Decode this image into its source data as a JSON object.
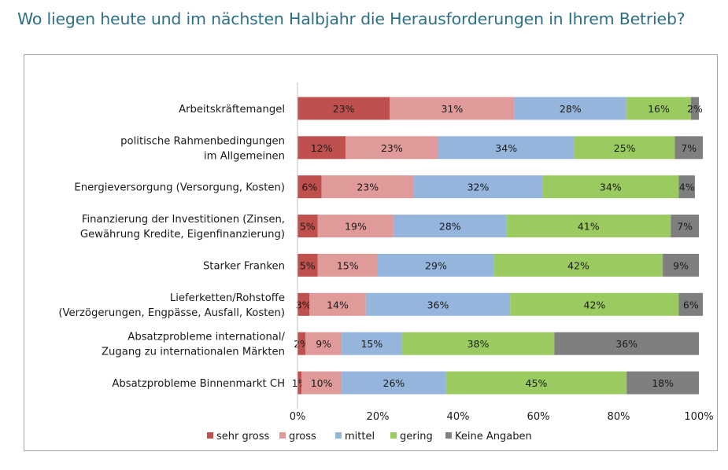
{
  "page": {
    "title": "Wo liegen heute und im nächsten Halbjahr die Herausforderungen in Ihrem Betrieb?"
  },
  "chart_data": {
    "type": "bar",
    "orientation": "horizontal",
    "stacked": true,
    "title": "",
    "xlabel": "",
    "ylabel": "",
    "xlim": [
      0,
      100
    ],
    "x_ticks": [
      "0%",
      "20%",
      "40%",
      "60%",
      "80%",
      "100%"
    ],
    "grid": false,
    "legend_position": "bottom",
    "categories": [
      [
        "Arbeitskräftemangel"
      ],
      [
        "politische Rahmenbedingungen",
        "im Allgemeinen"
      ],
      [
        "Energieversorgung (Versorgung, Kosten)"
      ],
      [
        "Finanzierung der Investitionen (Zinsen,",
        "Gewährung Kredite, Eigenfinanzierung)"
      ],
      [
        "Starker Franken"
      ],
      [
        "Lieferketten/Rohstoffe",
        "(Verzögerungen, Engpässe, Ausfall, Kosten)"
      ],
      [
        "Absatzprobleme international/",
        "Zugang zu internationalen Märkten"
      ],
      [
        "Absatzprobleme Binnenmarkt CH"
      ]
    ],
    "series": [
      {
        "name": "sehr gross",
        "color": "#c0504d",
        "values": [
          23,
          12,
          6,
          5,
          5,
          3,
          2,
          1
        ]
      },
      {
        "name": "gross",
        "color": "#e09a9a",
        "values": [
          31,
          23,
          23,
          19,
          15,
          14,
          9,
          10
        ]
      },
      {
        "name": "mittel",
        "color": "#95b5dc",
        "values": [
          28,
          34,
          32,
          28,
          29,
          36,
          15,
          26
        ]
      },
      {
        "name": "gering",
        "color": "#9bca61",
        "values": [
          16,
          25,
          34,
          41,
          42,
          42,
          38,
          45
        ]
      },
      {
        "name": "Keine Angaben",
        "color": "#7f7f7f",
        "values": [
          2,
          7,
          4,
          7,
          9,
          6,
          36,
          18
        ]
      }
    ]
  }
}
